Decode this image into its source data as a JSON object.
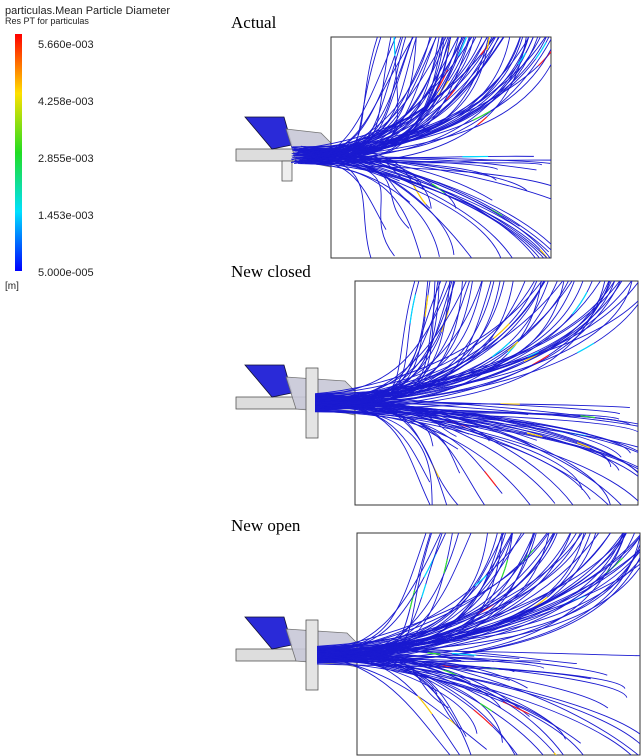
{
  "legend": {
    "title": "particulas.Mean Particle Diameter",
    "subtitle": "Res PT for particulas",
    "ticks": [
      "5.660e-003",
      "4.258e-003",
      "2.855e-003",
      "1.453e-003",
      "5.000e-005"
    ],
    "unit": "[m]"
  },
  "panels": [
    {
      "label": "Actual"
    },
    {
      "label": "New closed"
    },
    {
      "label": "New open"
    }
  ]
}
